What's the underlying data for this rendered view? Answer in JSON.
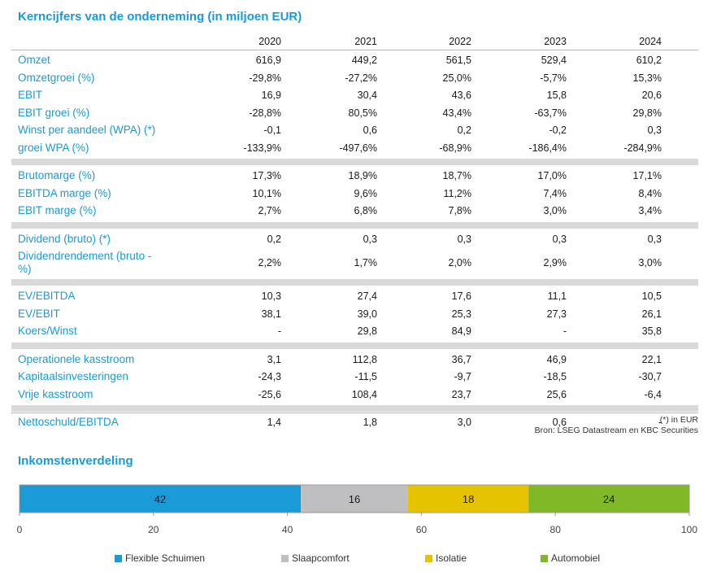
{
  "table": {
    "title": "Kerncijfers van de onderneming (in miljoen EUR)",
    "years": [
      "2020",
      "2021",
      "2022",
      "2023",
      "2024"
    ],
    "groups": [
      [
        {
          "label": "Omzet",
          "values": [
            "616,9",
            "449,2",
            "561,5",
            "529,4",
            "610,2"
          ]
        },
        {
          "label": "Omzetgroei (%)",
          "values": [
            "-29,8%",
            "-27,2%",
            "25,0%",
            "-5,7%",
            "15,3%"
          ]
        },
        {
          "label": "EBIT",
          "values": [
            "16,9",
            "30,4",
            "43,6",
            "15,8",
            "20,6"
          ]
        },
        {
          "label": "EBIT groei (%)",
          "values": [
            "-28,8%",
            "80,5%",
            "43,4%",
            "-63,7%",
            "29,8%"
          ]
        },
        {
          "label": "Winst per aandeel (WPA) (*)",
          "values": [
            "-0,1",
            "0,6",
            "0,2",
            "-0,2",
            "0,3"
          ]
        },
        {
          "label": "groei WPA (%)",
          "values": [
            "-133,9%",
            "-497,6%",
            "-68,9%",
            "-186,4%",
            "-284,9%"
          ]
        }
      ],
      [
        {
          "label": "Brutomarge (%)",
          "values": [
            "17,3%",
            "18,9%",
            "18,7%",
            "17,0%",
            "17,1%"
          ]
        },
        {
          "label": "EBITDA marge (%)",
          "values": [
            "10,1%",
            "9,6%",
            "11,2%",
            "7,4%",
            "8,4%"
          ]
        },
        {
          "label": "EBIT marge (%)",
          "values": [
            "2,7%",
            "6,8%",
            "7,8%",
            "3,0%",
            "3,4%"
          ]
        }
      ],
      [
        {
          "label": "Dividend (bruto) (*)",
          "values": [
            "0,2",
            "0,3",
            "0,3",
            "0,3",
            "0,3"
          ]
        },
        {
          "label": "Dividendrendement (bruto -\n%)",
          "values": [
            "2,2%",
            "1,7%",
            "2,0%",
            "2,9%",
            "3,0%"
          ]
        }
      ],
      [
        {
          "label": "EV/EBITDA",
          "values": [
            "10,3",
            "27,4",
            "17,6",
            "11,1",
            "10,5"
          ]
        },
        {
          "label": "EV/EBIT",
          "values": [
            "38,1",
            "39,0",
            "25,3",
            "27,3",
            "26,1"
          ]
        },
        {
          "label": "Koers/Winst",
          "values": [
            "-",
            "29,8",
            "84,9",
            "-",
            "35,8"
          ]
        }
      ],
      [
        {
          "label": "Operationele kasstroom",
          "values": [
            "3,1",
            "112,8",
            "36,7",
            "46,9",
            "22,1"
          ]
        },
        {
          "label": "Kapitaalsinvesteringen",
          "values": [
            "-24,3",
            "-11,5",
            "-9,7",
            "-18,5",
            "-30,7"
          ]
        },
        {
          "label": "Vrije kasstroom",
          "values": [
            "-25,6",
            "108,4",
            "23,7",
            "25,6",
            "-6,4"
          ]
        }
      ],
      [
        {
          "label": "Nettoschuld/EBITDA",
          "values": [
            "1,4",
            "1,8",
            "3,0",
            "0,6",
            "-"
          ]
        }
      ]
    ],
    "footnote": "(*) in EUR",
    "source": "Bron: LSEG Datastream en KBC Securities"
  },
  "chart_data": {
    "type": "bar",
    "orientation": "horizontal-stacked",
    "title": "Inkomstenverdeling",
    "series": [
      {
        "name": "Flexible Schuimen",
        "value": 42,
        "color": "#1a9ad6"
      },
      {
        "name": "Slaapcomfort",
        "value": 16,
        "color": "#bfbfc1"
      },
      {
        "name": "Isolatie",
        "value": 18,
        "color": "#e6c300"
      },
      {
        "name": "Automobiel",
        "value": 24,
        "color": "#80b828"
      }
    ],
    "xlim": [
      0,
      100
    ],
    "xticks": [
      0,
      20,
      40,
      60,
      80,
      100
    ],
    "legend": "bottom",
    "grid": false
  }
}
